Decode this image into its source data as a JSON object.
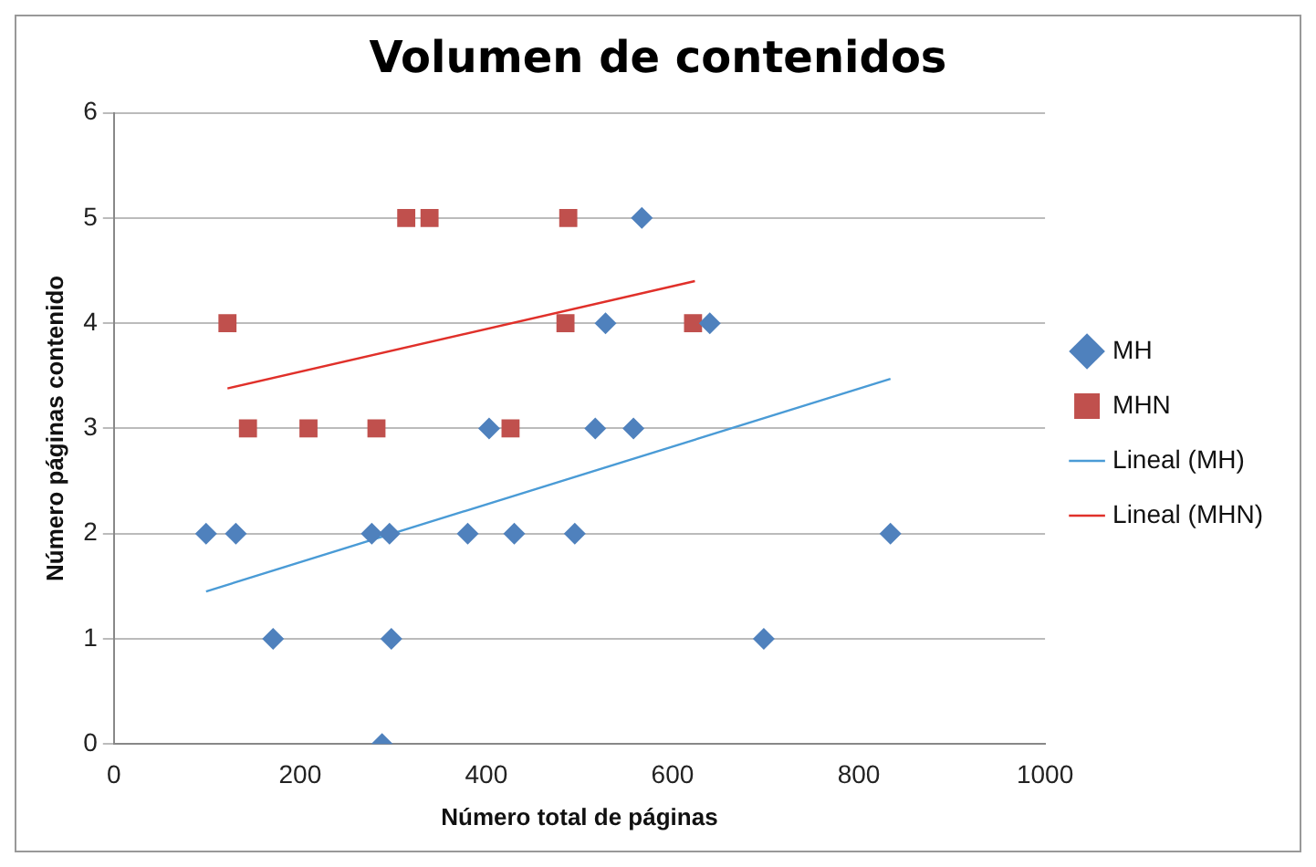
{
  "chart_data": {
    "type": "scatter",
    "title": "Volumen de contenidos",
    "xlabel": "Número total de páginas",
    "ylabel": "Número páginas contenido",
    "xlim": [
      0,
      1000
    ],
    "xticks": [
      0,
      200,
      400,
      600,
      800,
      1000
    ],
    "ylim": [
      0,
      6
    ],
    "yticks": [
      0,
      1,
      2,
      3,
      4,
      5,
      6
    ],
    "grid": "y",
    "legend": "right",
    "series": [
      {
        "name": "MH",
        "color": "#4f81bd",
        "marker": "diamond",
        "x": [
          99,
          131,
          171,
          277,
          296,
          298,
          288,
          380,
          430,
          495,
          403,
          567,
          528,
          640,
          517,
          558,
          834,
          698
        ],
        "values": [
          2,
          2,
          1,
          2,
          2,
          1,
          0,
          2,
          2,
          2,
          3,
          5,
          4,
          4,
          3,
          3,
          2,
          1
        ]
      },
      {
        "name": "MHN",
        "color": "#c0504d",
        "marker": "square",
        "x": [
          122,
          144,
          209,
          282,
          426,
          314,
          339,
          488,
          485,
          622
        ],
        "values": [
          4,
          3,
          3,
          3,
          3,
          5,
          5,
          5,
          4,
          4
        ]
      },
      {
        "name": "Lineal (MH)",
        "type": "line",
        "color": "#4a9bd6",
        "marker": "none",
        "x": [
          99,
          834
        ],
        "values": [
          1.45,
          3.47
        ]
      },
      {
        "name": "Lineal (MHN)",
        "type": "line",
        "color": "#e0302a",
        "marker": "none",
        "x": [
          122,
          624
        ],
        "values": [
          3.38,
          4.4
        ]
      }
    ]
  }
}
